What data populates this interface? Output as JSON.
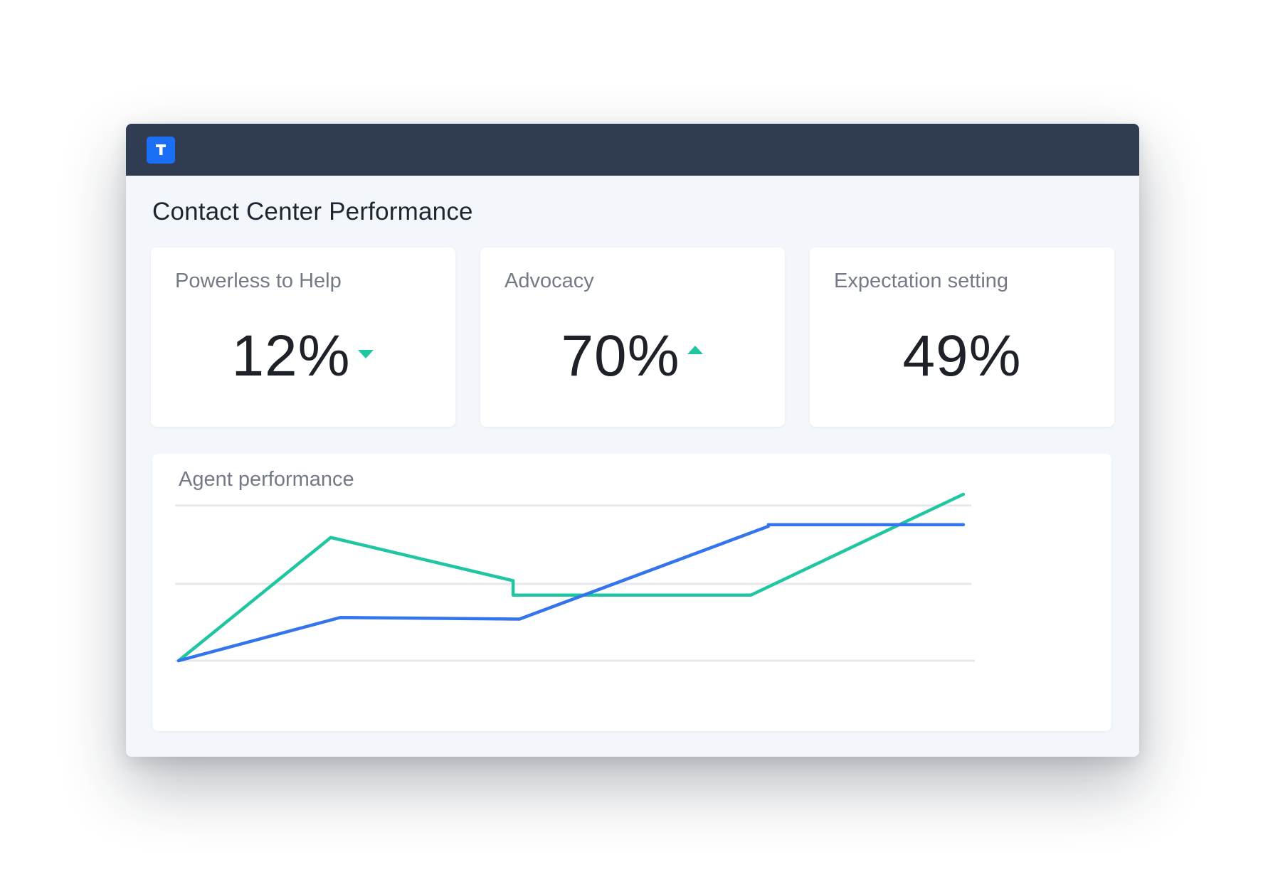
{
  "app": {
    "logo_letter": "T",
    "page_title": "Contact Center Performance"
  },
  "kpis": [
    {
      "label": "Powerless to Help",
      "value": "12%",
      "trend": "down"
    },
    {
      "label": "Advocacy",
      "value": "70%",
      "trend": "up"
    },
    {
      "label": "Expectation setting",
      "value": "49%",
      "trend": "none"
    }
  ],
  "colors": {
    "header": "#2f3c52",
    "brand": "#1a6ff5",
    "accent_green": "#1fc6a1",
    "accent_blue": "#3474ec"
  },
  "chart_data": {
    "type": "line",
    "title": "Agent performance",
    "xlabel": "",
    "ylabel": "",
    "x": [
      0,
      1,
      2,
      3,
      4,
      5
    ],
    "ylim": [
      0,
      100
    ],
    "gridlines": [
      0,
      48,
      97
    ],
    "series": [
      {
        "name": "series-green",
        "color": "#1fc6a1",
        "values": [
          0,
          77,
          50,
          41,
          41,
          104
        ],
        "x": [
          0,
          0.96,
          2.11,
          2.11,
          3.61,
          4.95
        ]
      },
      {
        "name": "series-blue",
        "color": "#3474ec",
        "values": [
          0,
          27,
          26,
          84,
          85,
          85
        ],
        "x": [
          0,
          1.02,
          2.15,
          3.72,
          3.72,
          4.95
        ]
      }
    ]
  }
}
